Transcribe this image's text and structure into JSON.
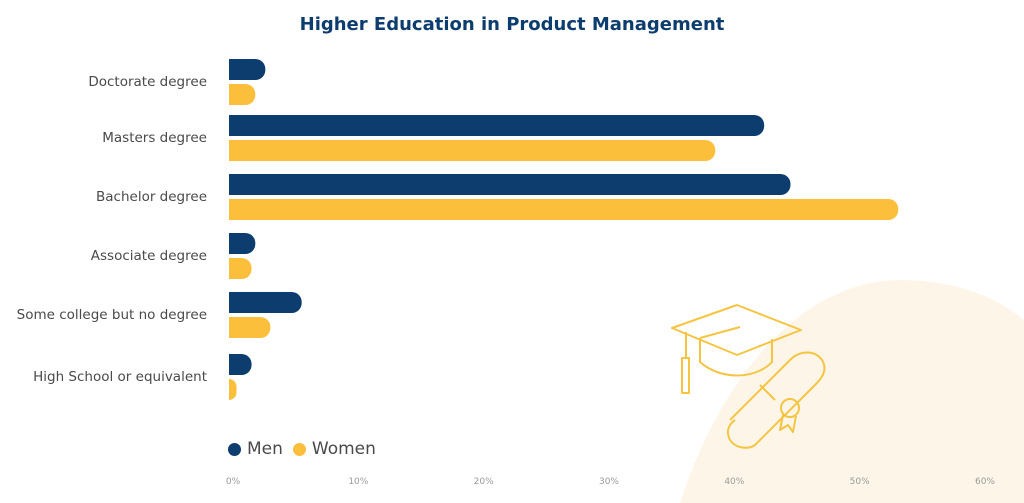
{
  "chart_data": {
    "type": "bar",
    "orientation": "horizontal",
    "title": "Higher Education in Product Management",
    "categories": [
      "Doctorate degree",
      "Masters degree",
      "Bachelor degree",
      "Associate degree",
      "Some college but no degree",
      "High School or equivalent"
    ],
    "series": [
      {
        "name": "Men",
        "color": "#0d3d6e",
        "values": [
          2.9,
          42.7,
          44.8,
          2.1,
          5.8,
          1.8
        ]
      },
      {
        "name": "Women",
        "color": "#fbbf3c",
        "values": [
          2.1,
          38.8,
          53.4,
          1.8,
          3.3,
          0.6
        ]
      }
    ],
    "xlim": [
      0,
      60
    ],
    "xticks": [
      "0%",
      "10%",
      "20%",
      "30%",
      "40%",
      "50%",
      "60%"
    ],
    "xlabel": "",
    "ylabel": "",
    "grid": false,
    "legend": "bottom-left",
    "decoration": [
      "graduation-cap-icon",
      "diploma-icon"
    ]
  }
}
